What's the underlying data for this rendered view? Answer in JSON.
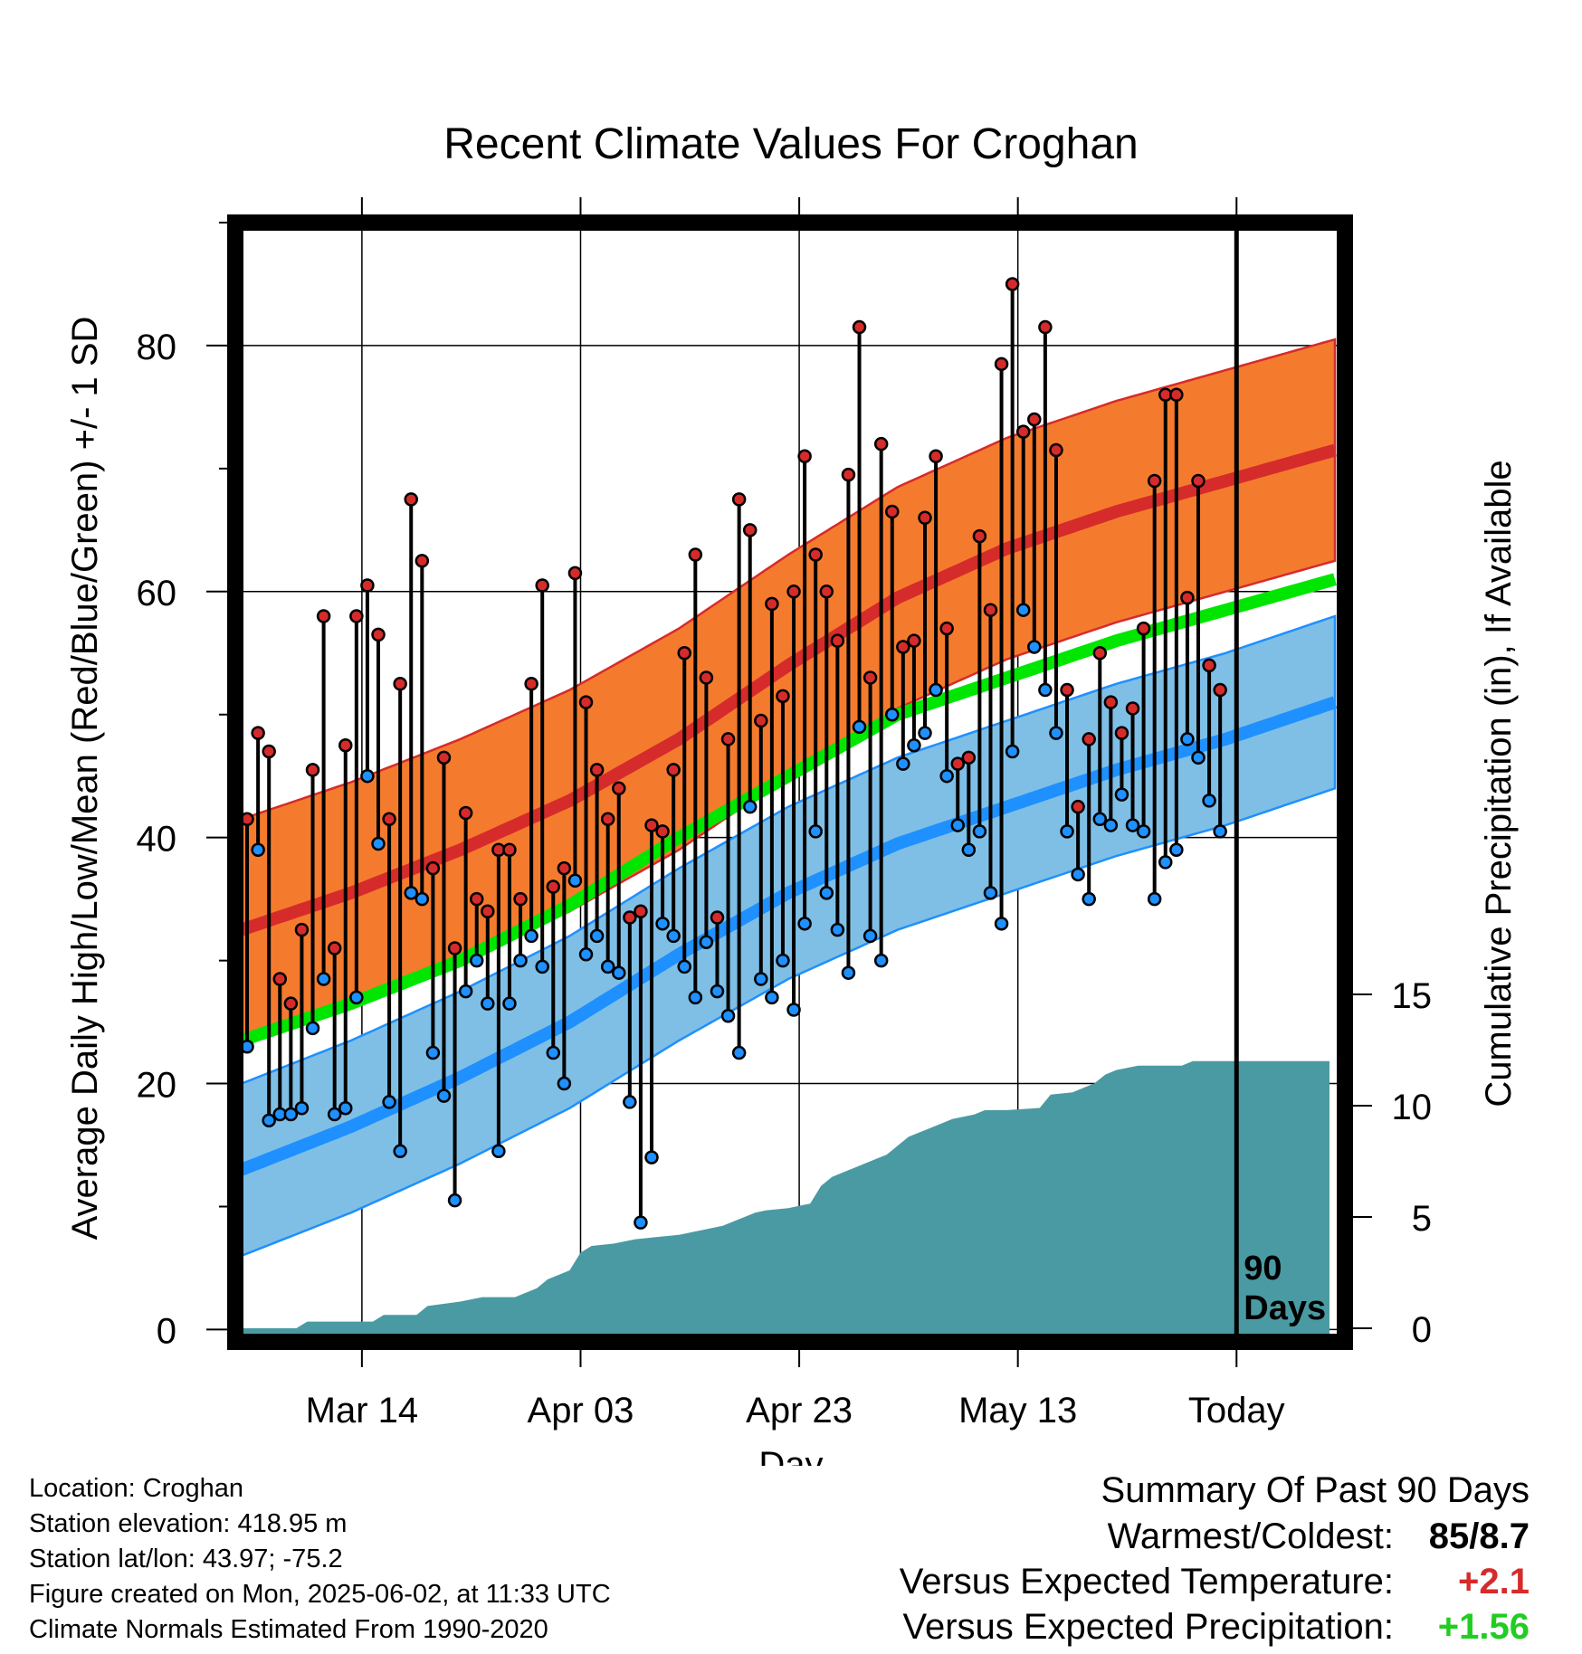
{
  "chart_data": {
    "type": "line",
    "title": "Recent Climate Values For Croghan",
    "xlabel": "Day",
    "ylabel_left": "Average Daily High/Low/Mean (Red/Blue/Green) +/- 1 SD",
    "ylabel_right": "Cumulative Precipitation (in), If Available",
    "ylim_left": [
      -1,
      90
    ],
    "ylim_right": [
      0,
      20
    ],
    "x_tick_labels": [
      "Mar 14",
      "Apr 03",
      "Apr 23",
      "May 13",
      "Today"
    ],
    "x_tick_days": [
      11,
      31,
      51,
      71,
      91
    ],
    "y_ticks_left": [
      0,
      20,
      40,
      60,
      80
    ],
    "y_ticks_right": [
      0,
      5,
      10,
      15
    ],
    "today_marker": {
      "day": 91,
      "label_line1": "90",
      "label_line2": "Days"
    },
    "days": 100,
    "normals": {
      "day": [
        0,
        10,
        20,
        30,
        40,
        50,
        60,
        70,
        80,
        90,
        100
      ],
      "high_mean": [
        32.5,
        35.5,
        39.0,
        43.0,
        48.0,
        54.0,
        59.5,
        63.5,
        66.5,
        69.0,
        71.5
      ],
      "high_sd": 9.0,
      "low_mean": [
        13.0,
        16.5,
        20.5,
        25.0,
        30.5,
        35.5,
        39.5,
        42.5,
        45.5,
        48.0,
        51.0
      ],
      "low_sd": 7.0,
      "avg_mean": [
        23.5,
        26.5,
        30.0,
        34.5,
        40.0,
        45.0,
        50.0,
        53.0,
        56.0,
        58.5,
        61.0
      ]
    },
    "observed": {
      "high": [
        41.5,
        48.5,
        47,
        28.5,
        26.5,
        32.5,
        45.5,
        58,
        31,
        47.5,
        58,
        60.5,
        56.5,
        41.5,
        52.5,
        67.5,
        62.5,
        37.5,
        46.5,
        31,
        42,
        35,
        34,
        39,
        39,
        35,
        52.5,
        60.5,
        36,
        37.5,
        61.5,
        51,
        45.5,
        41.5,
        44,
        33.5,
        34,
        41,
        40.5,
        45.5,
        55,
        63,
        53,
        33.5,
        48,
        67.5,
        65,
        49.5,
        59,
        51.5,
        60,
        71,
        63,
        60,
        56,
        69.5,
        81.5,
        53,
        72,
        66.5,
        55.5,
        56,
        66,
        71,
        57,
        46,
        46.5,
        64.5,
        58.5,
        78.5,
        85,
        73,
        74,
        81.5,
        71.5,
        52,
        42.5,
        48,
        55,
        51,
        48.5,
        50.5,
        57,
        69,
        76,
        76,
        59.5,
        69,
        54,
        52
      ],
      "low": [
        23,
        39,
        17,
        17.5,
        17.5,
        18,
        24.5,
        28.5,
        17.5,
        18,
        27,
        45,
        39.5,
        18.5,
        14.5,
        35.5,
        35,
        22.5,
        19,
        10.5,
        27.5,
        30,
        26.5,
        14.5,
        26.5,
        30,
        32,
        29.5,
        22.5,
        20,
        36.5,
        30.5,
        32,
        29.5,
        29,
        18.5,
        8.7,
        14,
        33,
        32,
        29.5,
        27,
        31.5,
        27.5,
        25.5,
        22.5,
        42.5,
        28.5,
        27,
        30,
        26,
        33,
        40.5,
        35.5,
        32.5,
        29,
        49,
        32,
        30,
        50,
        46,
        47.5,
        48.5,
        52,
        45,
        41,
        39,
        40.5,
        35.5,
        33,
        47,
        58.5,
        55.5,
        52,
        48.5,
        40.5,
        37,
        35,
        41.5,
        41,
        43.5,
        41,
        40.5,
        35,
        38,
        39,
        48,
        46.5,
        43,
        40.5
      ]
    },
    "precip_cum": {
      "day": [
        0,
        5,
        6,
        7,
        12,
        13,
        16,
        17,
        20,
        22,
        23,
        25,
        27,
        28,
        29,
        30,
        31,
        32,
        34,
        36,
        38,
        40,
        42,
        44,
        46,
        47,
        48,
        50,
        52,
        53,
        54,
        55,
        56,
        58,
        59,
        60,
        61,
        62,
        64,
        65,
        67,
        68,
        70,
        73,
        74,
        76,
        77,
        78,
        79,
        80,
        82,
        84,
        86,
        87,
        88,
        89,
        90,
        91,
        99.5
      ],
      "value": [
        0,
        0,
        0.3,
        0.3,
        0.3,
        0.6,
        0.6,
        1.0,
        1.2,
        1.4,
        1.4,
        1.4,
        1.8,
        2.2,
        2.4,
        2.6,
        3.4,
        3.7,
        3.8,
        4.0,
        4.1,
        4.2,
        4.4,
        4.6,
        5.0,
        5.2,
        5.3,
        5.4,
        5.6,
        6.4,
        6.8,
        7.0,
        7.2,
        7.6,
        7.8,
        8.2,
        8.6,
        8.8,
        9.2,
        9.4,
        9.6,
        9.8,
        9.8,
        9.9,
        10.5,
        10.6,
        10.8,
        11.0,
        11.4,
        11.6,
        11.8,
        11.8,
        11.8,
        12.0,
        12.0,
        12.0,
        12.0,
        12.0,
        12.0
      ]
    },
    "colors": {
      "high_band": "#f47b2e",
      "high_line": "#d62b2b",
      "high_point": "#d62b2b",
      "low_band": "#7fbfe6",
      "low_line": "#1e90ff",
      "low_point": "#1e90ff",
      "avg_line": "#00e600",
      "overlap": "#9b1515",
      "precip": "#4a9aa3"
    },
    "grid": true
  },
  "footer": {
    "location": "Location: Croghan",
    "elevation": "Station elevation: 418.95 m",
    "latlon": "Station lat/lon: 43.97; -75.2",
    "created": "Figure created on Mon, 2025-06-02, at 11:33 UTC",
    "normals": "Climate Normals Estimated From 1990-2020"
  },
  "summary": {
    "title": "Summary Of Past 90 Days",
    "warm_cold_label": "Warmest/Coldest:",
    "warm_cold_value": "85/8.7",
    "temp_label": "Versus Expected Temperature:",
    "temp_value": "+2.1",
    "temp_color": "#d62b2b",
    "precip_label": "Versus Expected Precipitation:",
    "precip_value": "+1.56",
    "precip_color": "#22cc22"
  }
}
